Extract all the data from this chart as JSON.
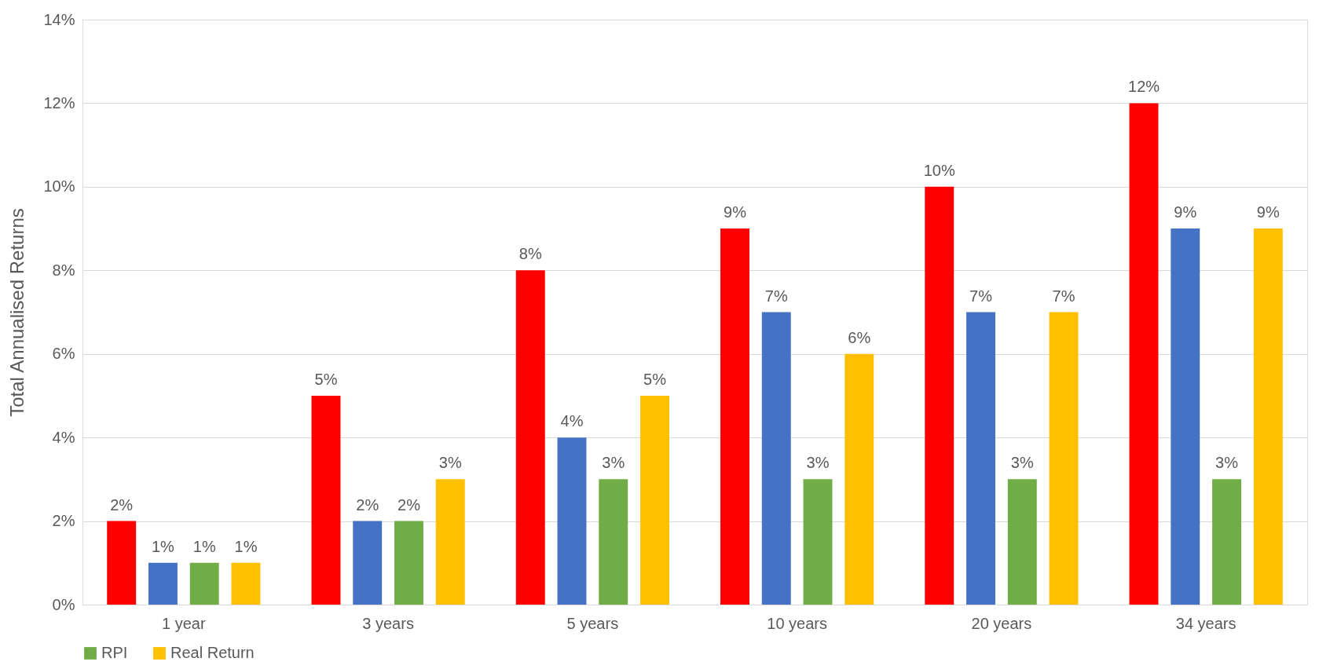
{
  "chart_data": {
    "type": "bar",
    "ylabel": "Total Annualised Returns",
    "categories": [
      "1 year",
      "3 years",
      "5 years",
      "10 years",
      "20 years",
      "34 years"
    ],
    "series": [
      {
        "name": null,
        "color": "#ff0000",
        "values": [
          2,
          5,
          8,
          9,
          10,
          12
        ],
        "value_labels": [
          "2%",
          "5%",
          "8%",
          "9%",
          "10%",
          "12%"
        ]
      },
      {
        "name": null,
        "color": "#4472c4",
        "values": [
          1,
          2,
          4,
          7,
          7,
          9
        ],
        "value_labels": [
          "1%",
          "2%",
          "4%",
          "7%",
          "7%",
          "9%"
        ]
      },
      {
        "name": "RPI",
        "color": "#70ad47",
        "values": [
          1,
          2,
          3,
          3,
          3,
          3
        ],
        "value_labels": [
          "1%",
          "2%",
          "3%",
          "3%",
          "3%",
          "3%"
        ]
      },
      {
        "name": "Real Return",
        "color": "#ffc000",
        "values": [
          1,
          3,
          5,
          6,
          7,
          9
        ],
        "value_labels": [
          "1%",
          "3%",
          "5%",
          "6%",
          "7%",
          "9%"
        ]
      }
    ],
    "ylim": [
      0,
      14
    ],
    "yticks": [
      {
        "value": 0,
        "label": "0%"
      },
      {
        "value": 2,
        "label": "2%"
      },
      {
        "value": 4,
        "label": "4%"
      },
      {
        "value": 6,
        "label": "6%"
      },
      {
        "value": 8,
        "label": "8%"
      },
      {
        "value": 10,
        "label": "10%"
      },
      {
        "value": 12,
        "label": "12%"
      },
      {
        "value": 14,
        "label": "14%"
      }
    ],
    "grid": "y",
    "legend": "bottom"
  }
}
